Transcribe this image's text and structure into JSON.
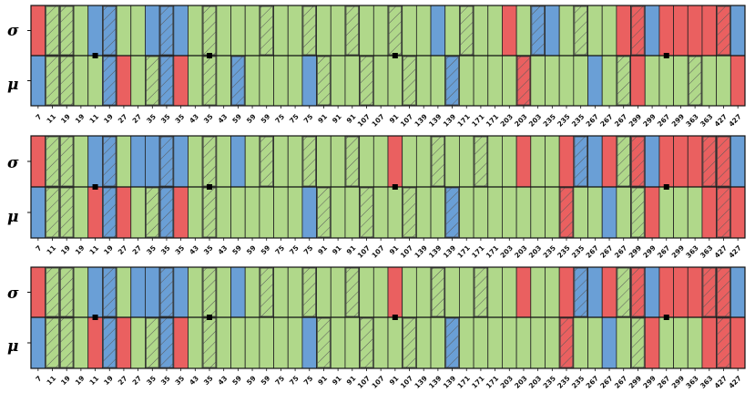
{
  "colors": {
    "green": "#b0d88a",
    "blue": "#6a9fd6",
    "red": "#ea6060",
    "edge": "#222222",
    "hatch": "#5a5a5a"
  },
  "row_labels": [
    "σ",
    "μ"
  ],
  "legend_codes": {
    "G": "green",
    "H": "green hatched",
    "B": "blue",
    "BH": "blue hatched",
    "R": "red",
    "RH": "red hatched"
  },
  "chart_data": [
    {
      "type": "heatmap",
      "rows": [
        "σ",
        "μ"
      ],
      "columns": [
        "7",
        "11",
        "19",
        "19",
        "11",
        "19",
        "27",
        "27",
        "35",
        "35",
        "35",
        "43",
        "35",
        "43",
        "59",
        "59",
        "59",
        "75",
        "75",
        "75",
        "91",
        "91",
        "91",
        "107",
        "107",
        "91",
        "107",
        "139",
        "139",
        "139",
        "171",
        "171",
        "171",
        "203",
        "203",
        "203",
        "235",
        "235",
        "235",
        "267",
        "267",
        "267",
        "299",
        "299",
        "267",
        "299",
        "363",
        "363",
        "427",
        "427"
      ],
      "cells": {
        "σ": [
          "R",
          "H",
          "H",
          "G",
          "B",
          "BH",
          "G",
          "G",
          "B",
          "BH",
          "B",
          "G",
          "H",
          "G",
          "G",
          "G",
          "H",
          "G",
          "G",
          "H",
          "G",
          "G",
          "H",
          "G",
          "G",
          "H",
          "G",
          "G",
          "B",
          "G",
          "H",
          "G",
          "G",
          "R",
          "G",
          "BH",
          "B",
          "G",
          "H",
          "G",
          "G",
          "R",
          "RH",
          "B",
          "R",
          "R",
          "R",
          "R",
          "RH",
          "B"
        ],
        "μ": [
          "B",
          "H",
          "H",
          "G",
          "G",
          "BH",
          "R",
          "G",
          "H",
          "BH",
          "R",
          "G",
          "H",
          "G",
          "BH",
          "G",
          "G",
          "G",
          "G",
          "B",
          "H",
          "G",
          "G",
          "H",
          "G",
          "G",
          "H",
          "G",
          "G",
          "BH",
          "G",
          "G",
          "G",
          "G",
          "RH",
          "G",
          "G",
          "G",
          "G",
          "B",
          "G",
          "H",
          "R",
          "G",
          "G",
          "G",
          "H",
          "G",
          "G",
          "R"
        ]
      },
      "markers": [
        "11",
        "35",
        "91",
        "267"
      ]
    },
    {
      "type": "heatmap",
      "rows": [
        "σ",
        "μ"
      ],
      "columns": [
        "7",
        "11",
        "19",
        "19",
        "11",
        "19",
        "27",
        "27",
        "35",
        "35",
        "35",
        "43",
        "35",
        "43",
        "59",
        "59",
        "59",
        "75",
        "75",
        "75",
        "91",
        "91",
        "91",
        "107",
        "107",
        "91",
        "107",
        "139",
        "139",
        "139",
        "171",
        "171",
        "171",
        "203",
        "203",
        "203",
        "235",
        "235",
        "235",
        "267",
        "267",
        "267",
        "299",
        "299",
        "267",
        "299",
        "363",
        "363",
        "427",
        "427"
      ],
      "cells": {
        "σ": [
          "R",
          "H",
          "H",
          "G",
          "B",
          "BH",
          "G",
          "B",
          "B",
          "BH",
          "B",
          "G",
          "H",
          "G",
          "B",
          "G",
          "H",
          "G",
          "G",
          "H",
          "G",
          "G",
          "H",
          "G",
          "G",
          "R",
          "G",
          "G",
          "H",
          "G",
          "G",
          "H",
          "G",
          "G",
          "R",
          "G",
          "G",
          "R",
          "BH",
          "B",
          "R",
          "H",
          "RH",
          "B",
          "R",
          "R",
          "R",
          "RH",
          "RH",
          "B"
        ],
        "μ": [
          "B",
          "H",
          "H",
          "G",
          "R",
          "BH",
          "R",
          "G",
          "H",
          "BH",
          "R",
          "G",
          "H",
          "G",
          "G",
          "G",
          "G",
          "G",
          "G",
          "B",
          "H",
          "G",
          "G",
          "H",
          "G",
          "G",
          "H",
          "G",
          "G",
          "BH",
          "G",
          "G",
          "G",
          "G",
          "G",
          "G",
          "G",
          "RH",
          "G",
          "G",
          "B",
          "G",
          "H",
          "R",
          "G",
          "G",
          "G",
          "R",
          "RH",
          "R"
        ]
      },
      "markers": [
        "11",
        "35",
        "91",
        "267"
      ]
    },
    {
      "type": "heatmap",
      "rows": [
        "σ",
        "μ"
      ],
      "columns": [
        "7",
        "11",
        "19",
        "19",
        "11",
        "19",
        "27",
        "27",
        "35",
        "35",
        "35",
        "43",
        "35",
        "43",
        "59",
        "59",
        "59",
        "75",
        "75",
        "75",
        "91",
        "91",
        "91",
        "107",
        "107",
        "91",
        "107",
        "139",
        "139",
        "139",
        "171",
        "171",
        "171",
        "203",
        "203",
        "203",
        "235",
        "235",
        "235",
        "267",
        "267",
        "267",
        "299",
        "299",
        "267",
        "299",
        "363",
        "363",
        "427",
        "427"
      ],
      "cells": {
        "σ": [
          "R",
          "H",
          "H",
          "G",
          "B",
          "BH",
          "G",
          "B",
          "B",
          "BH",
          "B",
          "G",
          "H",
          "G",
          "B",
          "G",
          "H",
          "G",
          "G",
          "H",
          "G",
          "G",
          "H",
          "G",
          "G",
          "R",
          "G",
          "G",
          "H",
          "G",
          "G",
          "H",
          "G",
          "G",
          "R",
          "G",
          "G",
          "R",
          "BH",
          "B",
          "R",
          "H",
          "RH",
          "B",
          "R",
          "R",
          "R",
          "RH",
          "RH",
          "B"
        ],
        "μ": [
          "B",
          "H",
          "H",
          "G",
          "R",
          "BH",
          "R",
          "G",
          "H",
          "BH",
          "R",
          "G",
          "H",
          "G",
          "G",
          "G",
          "G",
          "G",
          "G",
          "B",
          "H",
          "G",
          "G",
          "H",
          "G",
          "G",
          "H",
          "G",
          "G",
          "BH",
          "G",
          "G",
          "G",
          "G",
          "G",
          "G",
          "G",
          "RH",
          "G",
          "G",
          "B",
          "G",
          "H",
          "R",
          "G",
          "G",
          "G",
          "R",
          "RH",
          "R"
        ]
      },
      "markers": [
        "11",
        "35",
        "91",
        "267"
      ]
    }
  ]
}
